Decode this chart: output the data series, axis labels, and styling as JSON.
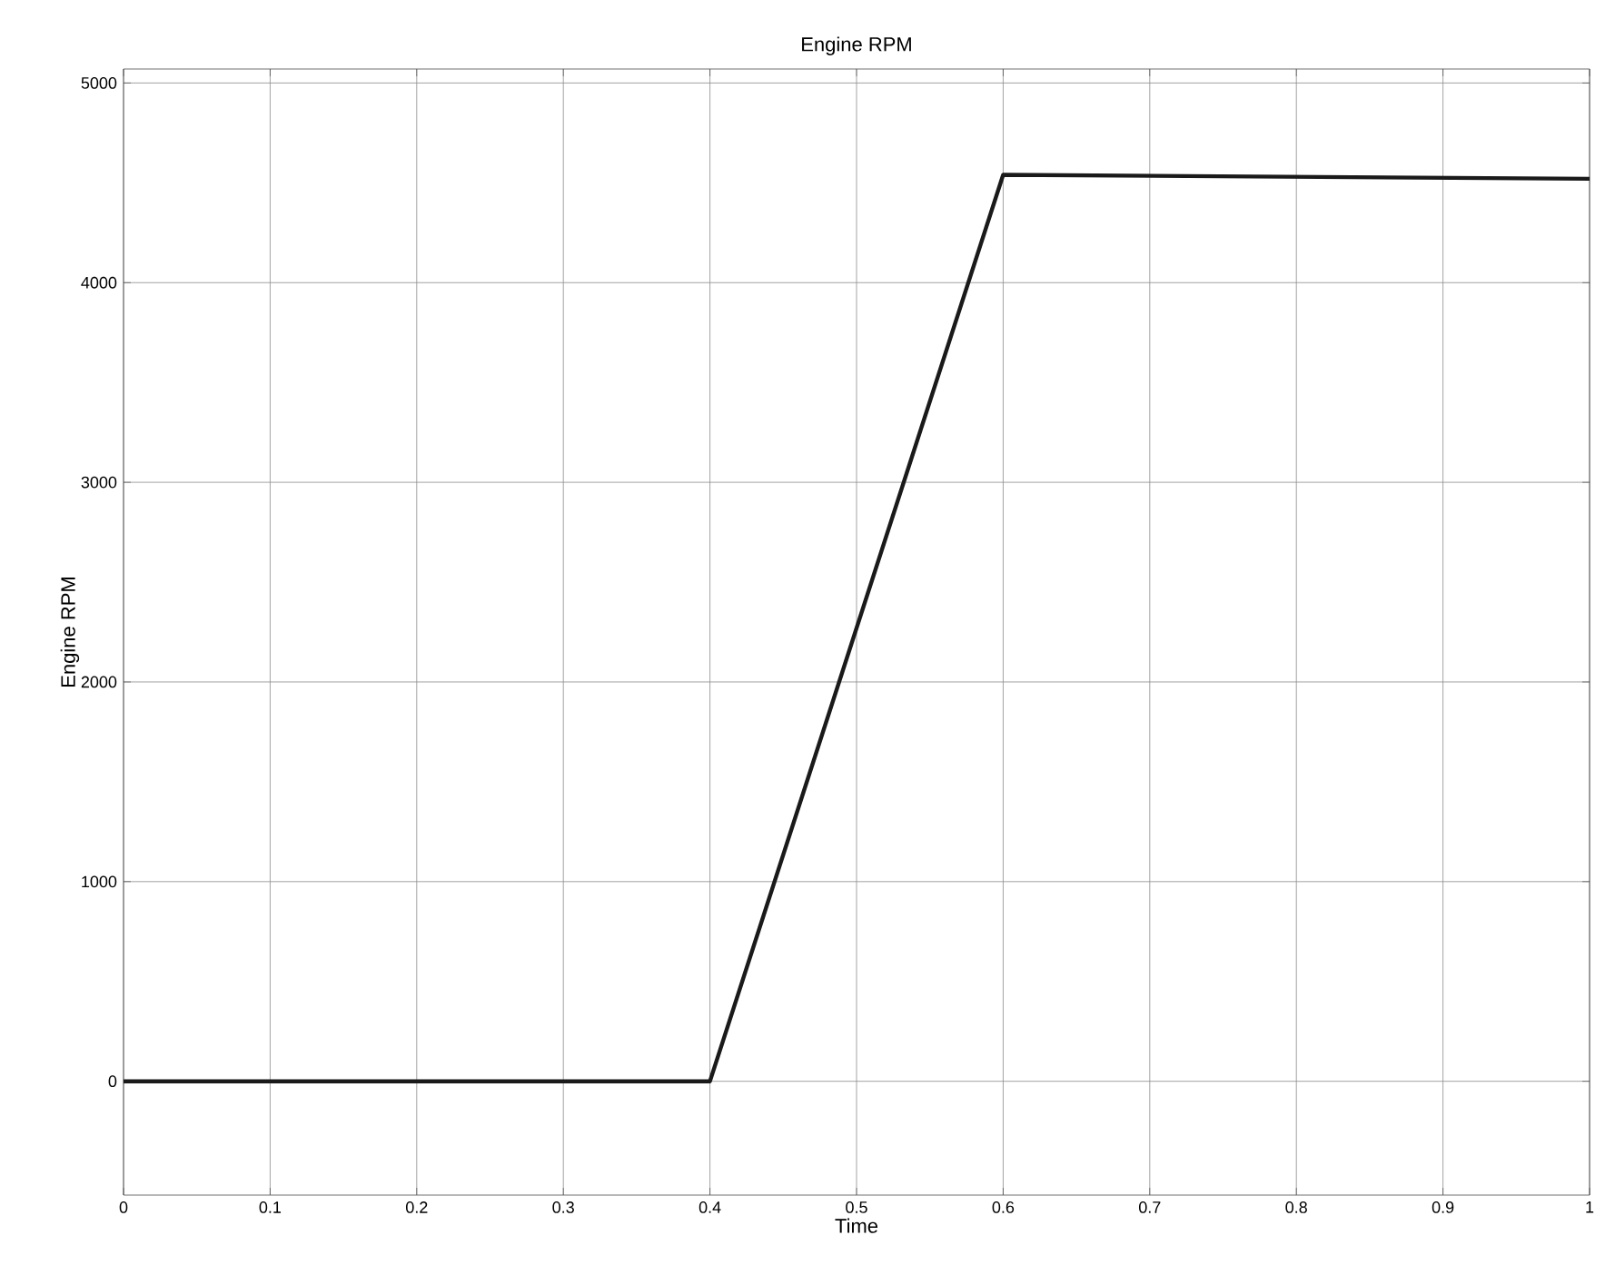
{
  "chart_data": {
    "type": "line",
    "title": "Engine RPM",
    "xlabel": "Time",
    "ylabel": "Engine RPM",
    "x": [
      0,
      0.4,
      0.6,
      1
    ],
    "series": [
      {
        "color": "#1a1a1a",
        "values": [
          0,
          0,
          4540,
          4520
        ]
      }
    ],
    "xlim": [
      0,
      1
    ],
    "ylim": [
      -570,
      5070
    ],
    "xticks": [
      0,
      0.1,
      0.2,
      0.3,
      0.4,
      0.5,
      0.6,
      0.7,
      0.8,
      0.9,
      1
    ],
    "yticks": [
      0,
      1000,
      2000,
      3000,
      4000,
      5000
    ],
    "grid": true,
    "marker": "none",
    "line_style": "solid"
  }
}
